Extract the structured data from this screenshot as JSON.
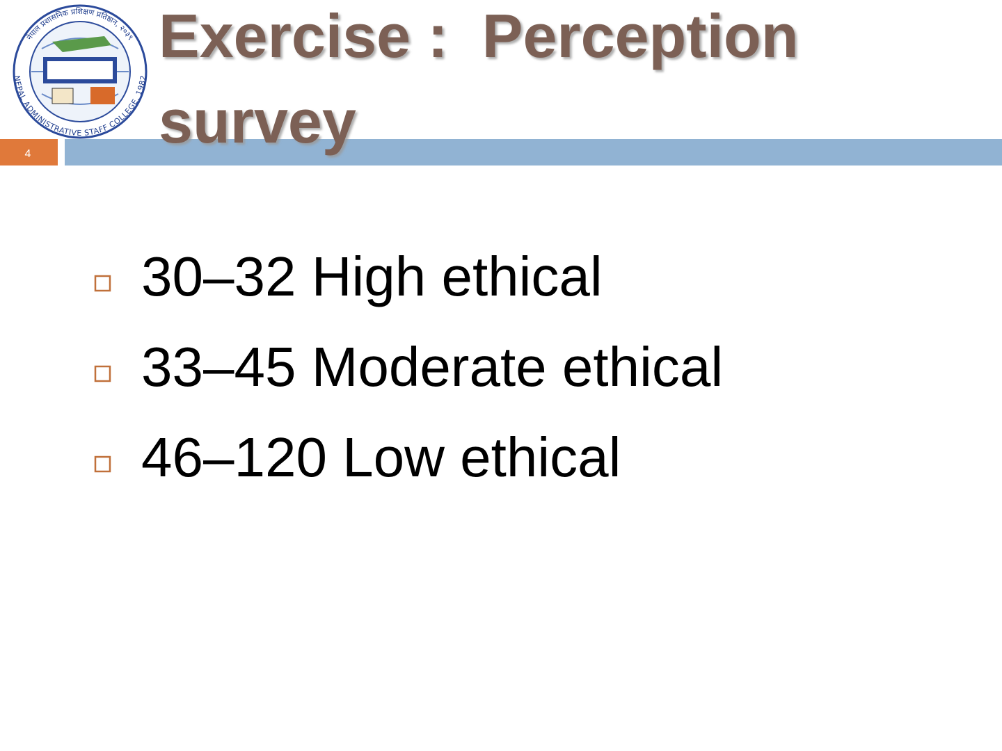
{
  "slide_number": "4",
  "title_lines": [
    "Exercise :  Perception",
    "survey"
  ],
  "logo": {
    "arc_top": "नेपाल प्रशासनिक प्रशिक्षण प्रतिष्ठान, २०३९",
    "arc_bottom": "NEPAL ADMINISTRATIVE STAFF COLLEGE, 1982"
  },
  "bullets": [
    "30–32 High ethical",
    "33–45 Moderate ethical",
    "46–120 Low ethical"
  ]
}
